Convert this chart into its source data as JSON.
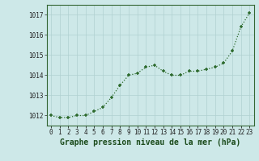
{
  "x": [
    0,
    1,
    2,
    3,
    4,
    5,
    6,
    7,
    8,
    9,
    10,
    11,
    12,
    13,
    14,
    15,
    16,
    17,
    18,
    19,
    20,
    21,
    22,
    23
  ],
  "y": [
    1012.0,
    1011.9,
    1011.9,
    1012.0,
    1012.0,
    1012.2,
    1012.4,
    1012.9,
    1013.5,
    1014.0,
    1014.1,
    1014.4,
    1014.5,
    1014.2,
    1014.0,
    1014.0,
    1014.2,
    1014.2,
    1014.3,
    1014.4,
    1014.6,
    1015.2,
    1016.4,
    1017.1
  ],
  "line_color": "#2d6a2d",
  "marker_color": "#2d6a2d",
  "bg_color": "#cde8e8",
  "grid_color": "#b0d0d0",
  "title": "Graphe pression niveau de la mer (hPa)",
  "xlabel_ticks": [
    "0",
    "1",
    "2",
    "3",
    "4",
    "5",
    "6",
    "7",
    "8",
    "9",
    "10",
    "11",
    "12",
    "13",
    "14",
    "15",
    "16",
    "17",
    "18",
    "19",
    "20",
    "21",
    "22",
    "23"
  ],
  "yticks": [
    1012,
    1013,
    1014,
    1015,
    1016,
    1017
  ],
  "ylim": [
    1011.5,
    1017.5
  ],
  "xlim": [
    -0.5,
    23.5
  ],
  "tick_fontsize": 5.5,
  "title_fontsize": 7.0
}
